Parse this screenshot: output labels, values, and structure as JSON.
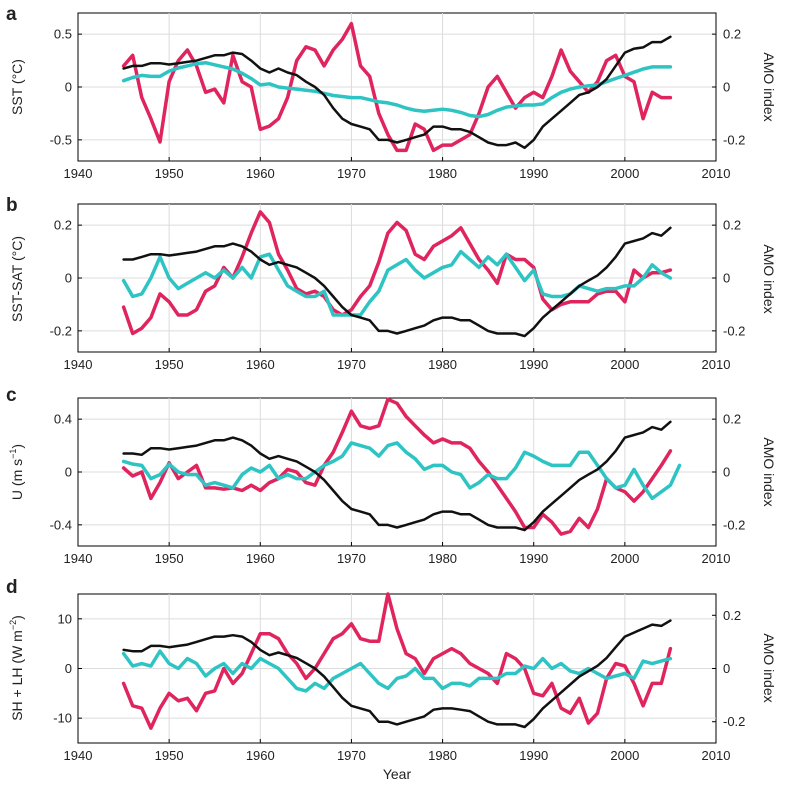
{
  "chart_data": [
    {
      "type": "line",
      "panel": "a",
      "ylabel": "SST (°C)",
      "ylabel_right": "AMO index",
      "xlim": [
        1940,
        2010
      ],
      "ylim": [
        -0.7,
        0.7
      ],
      "ylim_right": [
        -0.28,
        0.28
      ],
      "xticks": [
        "1940",
        "1950",
        "1960",
        "1970",
        "1980",
        "1990",
        "2000",
        "2010"
      ],
      "yticks": [
        {
          "value": 0.5,
          "label": "0.5"
        },
        {
          "value": 0,
          "label": "0"
        },
        {
          "value": -0.5,
          "label": "-0.5"
        }
      ],
      "yticks_right": [
        {
          "value": 0.2,
          "label": "0.2"
        },
        {
          "value": 0,
          "label": "0"
        },
        {
          "value": -0.2,
          "label": "-0.2"
        }
      ],
      "series": [
        {
          "name": "pink",
          "color": "#e0245e",
          "width": 3.5,
          "axis": "left",
          "x0": 1945,
          "values": [
            0.2,
            0.3,
            -0.1,
            -0.3,
            -0.52,
            0.05,
            0.25,
            0.35,
            0.2,
            -0.05,
            -0.02,
            -0.15,
            0.3,
            0.05,
            0.0,
            -0.4,
            -0.37,
            -0.3,
            -0.1,
            0.25,
            0.38,
            0.35,
            0.2,
            0.35,
            0.45,
            0.6,
            0.2,
            0.1,
            -0.25,
            -0.45,
            -0.6,
            -0.6,
            -0.35,
            -0.4,
            -0.6,
            -0.55,
            -0.55,
            -0.5,
            -0.45,
            -0.25,
            0.0,
            0.1,
            -0.05,
            -0.2,
            -0.1,
            -0.05,
            -0.1,
            0.1,
            0.35,
            0.15,
            0.05,
            -0.05,
            0.05,
            0.25,
            0.3,
            0.1,
            0.05,
            -0.3,
            -0.05,
            -0.1,
            -0.1
          ]
        },
        {
          "name": "cyan",
          "color": "#2ec4c4",
          "width": 3.5,
          "axis": "left",
          "x0": 1945,
          "values": [
            0.06,
            0.09,
            0.11,
            0.1,
            0.1,
            0.15,
            0.18,
            0.2,
            0.22,
            0.23,
            0.21,
            0.19,
            0.17,
            0.13,
            0.08,
            0.02,
            0.03,
            0.0,
            -0.01,
            -0.02,
            -0.03,
            -0.04,
            -0.06,
            -0.08,
            -0.09,
            -0.1,
            -0.1,
            -0.12,
            -0.14,
            -0.15,
            -0.17,
            -0.2,
            -0.22,
            -0.23,
            -0.22,
            -0.21,
            -0.22,
            -0.24,
            -0.27,
            -0.28,
            -0.26,
            -0.22,
            -0.19,
            -0.18,
            -0.17,
            -0.17,
            -0.16,
            -0.1,
            -0.05,
            -0.02,
            0.0,
            0.01,
            0.02,
            0.05,
            0.08,
            0.11,
            0.14,
            0.17,
            0.19,
            0.19,
            0.19
          ]
        },
        {
          "name": "AMO",
          "color": "#111111",
          "width": 2.5,
          "axis": "right",
          "x0": 1945,
          "values": [
            0.07,
            0.08,
            0.08,
            0.09,
            0.09,
            0.085,
            0.09,
            0.095,
            0.1,
            0.11,
            0.12,
            0.12,
            0.13,
            0.125,
            0.1,
            0.07,
            0.055,
            0.07,
            0.055,
            0.045,
            0.02,
            0.0,
            -0.03,
            -0.08,
            -0.12,
            -0.14,
            -0.15,
            -0.16,
            -0.2,
            -0.2,
            -0.21,
            -0.2,
            -0.19,
            -0.18,
            -0.15,
            -0.15,
            -0.16,
            -0.16,
            -0.17,
            -0.19,
            -0.21,
            -0.22,
            -0.22,
            -0.21,
            -0.23,
            -0.2,
            -0.15,
            -0.12,
            -0.09,
            -0.06,
            -0.03,
            -0.02,
            0.0,
            0.03,
            0.08,
            0.13,
            0.145,
            0.15,
            0.17,
            0.17,
            0.19
          ]
        }
      ]
    },
    {
      "type": "line",
      "panel": "b",
      "ylabel": "SST-SAT (°C)",
      "ylabel_right": "AMO index",
      "xlim": [
        1940,
        2010
      ],
      "ylim": [
        -0.28,
        0.28
      ],
      "ylim_right": [
        -0.28,
        0.28
      ],
      "xticks": [
        "1940",
        "1950",
        "1960",
        "1970",
        "1980",
        "1990",
        "2000",
        "2010"
      ],
      "yticks": [
        {
          "value": 0.2,
          "label": "0.2"
        },
        {
          "value": 0,
          "label": "0"
        },
        {
          "value": -0.2,
          "label": "-0.2"
        }
      ],
      "yticks_right": [
        {
          "value": 0.2,
          "label": "0.2"
        },
        {
          "value": 0,
          "label": "0"
        },
        {
          "value": -0.2,
          "label": "-0.2"
        }
      ],
      "series": [
        {
          "name": "pink",
          "color": "#e0245e",
          "width": 3.5,
          "axis": "left",
          "x0": 1945,
          "values": [
            -0.11,
            -0.21,
            -0.19,
            -0.15,
            -0.06,
            -0.09,
            -0.14,
            -0.14,
            -0.12,
            -0.05,
            -0.03,
            0.04,
            0.0,
            0.08,
            0.17,
            0.25,
            0.21,
            0.09,
            0.03,
            -0.04,
            -0.06,
            -0.05,
            -0.07,
            -0.12,
            -0.14,
            -0.12,
            -0.07,
            -0.03,
            0.06,
            0.17,
            0.21,
            0.18,
            0.09,
            0.07,
            0.12,
            0.14,
            0.16,
            0.19,
            0.13,
            0.07,
            0.03,
            -0.02,
            0.09,
            0.07,
            0.07,
            0.04,
            -0.08,
            -0.12,
            -0.1,
            -0.09,
            -0.09,
            -0.09,
            -0.06,
            -0.05,
            -0.05,
            -0.09,
            0.03,
            0.0,
            0.02,
            0.02,
            0.03
          ]
        },
        {
          "name": "cyan",
          "color": "#2ec4c4",
          "width": 3.5,
          "axis": "left",
          "x0": 1945,
          "values": [
            -0.01,
            -0.07,
            -0.06,
            0.0,
            0.08,
            0.0,
            -0.04,
            -0.02,
            0.0,
            0.02,
            0.0,
            0.03,
            0.0,
            0.04,
            0.0,
            0.08,
            0.09,
            0.03,
            -0.03,
            -0.05,
            -0.07,
            -0.07,
            -0.05,
            -0.14,
            -0.14,
            -0.14,
            -0.14,
            -0.09,
            -0.05,
            0.03,
            0.05,
            0.07,
            0.03,
            0.0,
            0.02,
            0.04,
            0.05,
            0.1,
            0.07,
            0.04,
            0.08,
            0.05,
            0.09,
            0.04,
            -0.01,
            0.03,
            -0.06,
            -0.07,
            -0.07,
            -0.06,
            -0.03,
            -0.04,
            -0.05,
            -0.04,
            -0.04,
            -0.03,
            -0.03,
            0.0,
            0.05,
            0.02,
            0.0
          ]
        },
        {
          "name": "AMO",
          "color": "#111111",
          "width": 2.5,
          "axis": "right",
          "x0": 1945,
          "values": [
            0.07,
            0.07,
            0.08,
            0.09,
            0.09,
            0.085,
            0.09,
            0.095,
            0.1,
            0.11,
            0.12,
            0.12,
            0.13,
            0.12,
            0.1,
            0.07,
            0.05,
            0.06,
            0.05,
            0.04,
            0.02,
            0.0,
            -0.03,
            -0.07,
            -0.11,
            -0.14,
            -0.15,
            -0.16,
            -0.2,
            -0.2,
            -0.21,
            -0.2,
            -0.19,
            -0.18,
            -0.16,
            -0.15,
            -0.15,
            -0.16,
            -0.16,
            -0.18,
            -0.2,
            -0.21,
            -0.21,
            -0.21,
            -0.22,
            -0.19,
            -0.15,
            -0.12,
            -0.09,
            -0.06,
            -0.03,
            -0.01,
            0.01,
            0.04,
            0.08,
            0.13,
            0.14,
            0.15,
            0.17,
            0.16,
            0.19
          ]
        }
      ]
    },
    {
      "type": "line",
      "panel": "c",
      "ylabel": "U (m s",
      "ylabel_sup": "−1",
      "ylabel_tail": ")",
      "ylabel_right": "AMO index",
      "xlim": [
        1940,
        2010
      ],
      "ylim": [
        -0.56,
        0.56
      ],
      "ylim_right": [
        -0.28,
        0.28
      ],
      "xticks": [
        "1940",
        "1950",
        "1960",
        "1970",
        "1980",
        "1990",
        "2000",
        "2010"
      ],
      "yticks": [
        {
          "value": 0.4,
          "label": "0.4"
        },
        {
          "value": 0,
          "label": "0"
        },
        {
          "value": -0.4,
          "label": "-0.4"
        }
      ],
      "yticks_right": [
        {
          "value": 0.2,
          "label": "0.2"
        },
        {
          "value": 0,
          "label": "0"
        },
        {
          "value": -0.2,
          "label": "-0.2"
        }
      ],
      "series": [
        {
          "name": "pink",
          "color": "#e0245e",
          "width": 3.5,
          "axis": "left",
          "x0": 1945,
          "values": [
            0.03,
            -0.03,
            0.0,
            -0.2,
            -0.08,
            0.07,
            -0.05,
            0.0,
            0.05,
            -0.12,
            -0.12,
            -0.13,
            -0.12,
            -0.14,
            -0.1,
            -0.14,
            -0.08,
            -0.05,
            0.02,
            0.0,
            -0.08,
            -0.1,
            0.05,
            0.15,
            0.3,
            0.46,
            0.35,
            0.33,
            0.35,
            0.55,
            0.52,
            0.42,
            0.35,
            0.28,
            0.22,
            0.25,
            0.22,
            0.22,
            0.18,
            0.08,
            0.0,
            -0.1,
            -0.2,
            -0.3,
            -0.42,
            -0.42,
            -0.32,
            -0.38,
            -0.47,
            -0.45,
            -0.35,
            -0.42,
            -0.28,
            -0.05,
            -0.12,
            -0.15,
            -0.22,
            -0.15,
            -0.05,
            0.05,
            0.16
          ]
        },
        {
          "name": "cyan",
          "color": "#2ec4c4",
          "width": 3.5,
          "axis": "left",
          "x0": 1945,
          "values": [
            0.08,
            0.06,
            0.05,
            -0.05,
            -0.02,
            0.06,
            0.0,
            -0.02,
            -0.02,
            -0.1,
            -0.08,
            -0.1,
            -0.12,
            -0.02,
            0.03,
            0.0,
            0.05,
            -0.05,
            -0.02,
            -0.05,
            -0.05,
            0.0,
            0.05,
            0.08,
            0.12,
            0.22,
            0.2,
            0.18,
            0.12,
            0.2,
            0.22,
            0.15,
            0.1,
            0.02,
            0.05,
            0.05,
            0.0,
            -0.02,
            -0.12,
            -0.08,
            -0.02,
            -0.05,
            -0.05,
            0.03,
            0.15,
            0.12,
            0.08,
            0.05,
            0.05,
            0.05,
            0.15,
            0.15,
            0.05,
            -0.05,
            -0.12,
            -0.1,
            0.02,
            -0.1,
            -0.2,
            -0.15,
            -0.1,
            0.05
          ]
        },
        {
          "name": "AMO",
          "color": "#111111",
          "width": 2.5,
          "axis": "right",
          "x0": 1945,
          "values": [
            0.07,
            0.07,
            0.065,
            0.09,
            0.09,
            0.085,
            0.09,
            0.095,
            0.1,
            0.11,
            0.12,
            0.12,
            0.13,
            0.12,
            0.1,
            0.07,
            0.05,
            0.06,
            0.05,
            0.04,
            0.02,
            0.0,
            -0.03,
            -0.07,
            -0.11,
            -0.14,
            -0.15,
            -0.16,
            -0.2,
            -0.2,
            -0.21,
            -0.2,
            -0.19,
            -0.18,
            -0.16,
            -0.15,
            -0.15,
            -0.16,
            -0.16,
            -0.18,
            -0.2,
            -0.21,
            -0.21,
            -0.21,
            -0.22,
            -0.19,
            -0.15,
            -0.12,
            -0.09,
            -0.06,
            -0.03,
            -0.01,
            0.01,
            0.04,
            0.08,
            0.13,
            0.14,
            0.15,
            0.17,
            0.16,
            0.19
          ]
        }
      ]
    },
    {
      "type": "line",
      "panel": "d",
      "ylabel": "SH + LH (W m",
      "ylabel_sup": "−2",
      "ylabel_tail": ")",
      "ylabel_right": "AMO index",
      "xlim": [
        1940,
        2010
      ],
      "ylim": [
        -15,
        15
      ],
      "ylim_right": [
        -0.28,
        0.28
      ],
      "xticks": [
        "1940",
        "1950",
        "1960",
        "1970",
        "1980",
        "1990",
        "2000",
        "2010"
      ],
      "yticks": [
        {
          "value": 10,
          "label": "10"
        },
        {
          "value": 0,
          "label": "0"
        },
        {
          "value": -10,
          "label": "-10"
        }
      ],
      "yticks_right": [
        {
          "value": 0.2,
          "label": "0.2"
        },
        {
          "value": 0,
          "label": "0"
        },
        {
          "value": -0.2,
          "label": "-0.2"
        }
      ],
      "xlabel": "Year",
      "series": [
        {
          "name": "pink",
          "color": "#e0245e",
          "width": 3.5,
          "axis": "left",
          "x0": 1945,
          "values": [
            -3,
            -7.5,
            -8,
            -12,
            -8,
            -5,
            -6.5,
            -6,
            -8.5,
            -5,
            -4.5,
            0,
            -3,
            -1,
            3,
            7,
            7,
            6,
            3,
            1,
            -2,
            0,
            3,
            6,
            7,
            9,
            6,
            5.5,
            5.5,
            15,
            8,
            3,
            2,
            -1,
            2,
            3,
            4,
            3,
            1,
            0,
            -1,
            -3,
            3,
            2,
            0,
            -5,
            -5.5,
            -3,
            -8,
            -9,
            -6,
            -11,
            -9,
            -2,
            1,
            0.5,
            -3,
            -7.5,
            -3,
            -3,
            4
          ]
        },
        {
          "name": "cyan",
          "color": "#2ec4c4",
          "width": 3.5,
          "axis": "left",
          "x0": 1945,
          "values": [
            3,
            0.5,
            1,
            0.5,
            3.5,
            1,
            0,
            2,
            1,
            -1.5,
            0,
            1,
            -1,
            1,
            0,
            2,
            1,
            0,
            -2,
            -4,
            -4.5,
            -3,
            -4,
            -2,
            -1,
            0,
            1,
            -1,
            -3,
            -4,
            -2,
            -1.5,
            0,
            -2,
            -2,
            -4,
            -3,
            -3,
            -3.5,
            -2,
            -2,
            -2,
            -1,
            -1,
            0.5,
            0,
            2,
            0,
            1,
            -0.5,
            -1,
            0,
            -1,
            -2,
            -1.5,
            -1,
            -2,
            1.5,
            1,
            1.5,
            2
          ]
        },
        {
          "name": "AMO",
          "color": "#111111",
          "width": 2.5,
          "axis": "right",
          "x0": 1945,
          "values": [
            0.07,
            0.065,
            0.065,
            0.085,
            0.085,
            0.08,
            0.085,
            0.09,
            0.1,
            0.11,
            0.12,
            0.12,
            0.125,
            0.12,
            0.1,
            0.07,
            0.05,
            0.06,
            0.05,
            0.04,
            0.02,
            0.0,
            -0.03,
            -0.07,
            -0.11,
            -0.14,
            -0.15,
            -0.16,
            -0.2,
            -0.2,
            -0.21,
            -0.2,
            -0.19,
            -0.18,
            -0.155,
            -0.15,
            -0.15,
            -0.155,
            -0.16,
            -0.18,
            -0.2,
            -0.21,
            -0.21,
            -0.21,
            -0.22,
            -0.19,
            -0.15,
            -0.12,
            -0.09,
            -0.06,
            -0.03,
            -0.01,
            0.01,
            0.04,
            0.08,
            0.12,
            0.135,
            0.15,
            0.165,
            0.16,
            0.18
          ]
        }
      ]
    }
  ]
}
